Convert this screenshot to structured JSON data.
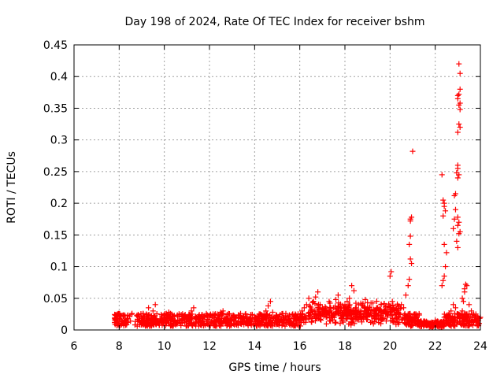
{
  "chart_data": {
    "type": "scatter",
    "title": "Day 198 of 2024, Rate Of TEC Index for receiver bshm",
    "xlabel": "GPS time / hours",
    "ylabel": "ROTI / TECUs",
    "xlim": [
      6,
      24
    ],
    "ylim": [
      0,
      0.45
    ],
    "xticks": [
      6,
      8,
      10,
      12,
      14,
      16,
      18,
      20,
      22,
      24
    ],
    "yticks": [
      0,
      0.05,
      0.1,
      0.15,
      0.2,
      0.25,
      0.3,
      0.35,
      0.4,
      0.45
    ],
    "ytick_labels": [
      "0",
      "0.05",
      "0.1",
      "0.15",
      "0.2",
      "0.25",
      "0.3",
      "0.35",
      "0.4",
      "0.45"
    ],
    "grid": true,
    "marker": "+",
    "color": "#ff0000",
    "series": [
      {
        "x": [
          7.8,
          7.9,
          8.0,
          8.1,
          8.2,
          8.3,
          8.5,
          8.7,
          8.9,
          9.0,
          9.1,
          9.2,
          9.3,
          9.4,
          9.5,
          9.6,
          9.7,
          9.9,
          10.0,
          10.2,
          10.3,
          10.4,
          10.6,
          10.8,
          11.0,
          11.1,
          11.2,
          11.3,
          11.5,
          11.7,
          11.9,
          12.0,
          12.2,
          12.4,
          12.5,
          12.6,
          12.8,
          13.0,
          13.2,
          13.4,
          13.5,
          13.6,
          13.8,
          14.0,
          14.2,
          14.3,
          14.4,
          14.5,
          14.6,
          14.7,
          14.8,
          15.0,
          15.2,
          15.4,
          15.6,
          15.8,
          16.0,
          16.1,
          16.2,
          16.3,
          16.4,
          16.5,
          16.6,
          16.7,
          16.8,
          16.9,
          17.0,
          17.1,
          17.2,
          17.3,
          17.5,
          17.6,
          17.7,
          17.8,
          17.9,
          18.0,
          18.1,
          18.2,
          18.3,
          18.4,
          18.5,
          18.6,
          18.7,
          18.8,
          18.9,
          19.0,
          19.2,
          19.4,
          19.6,
          19.8,
          20.0,
          20.1,
          20.2,
          20.3,
          20.5,
          20.6,
          20.7,
          20.8,
          20.9,
          21.0,
          21.2,
          21.4,
          21.6,
          21.8,
          22.0,
          22.2,
          22.3,
          22.4,
          22.5,
          22.6,
          22.7,
          22.8,
          22.9,
          23.0,
          23.1,
          23.2,
          23.3,
          23.4,
          23.5,
          23.6,
          23.8,
          24.0,
          8.0,
          8.4,
          8.8,
          9.2,
          9.5,
          9.8,
          10.1,
          10.5,
          10.9,
          11.3,
          11.6,
          12.1,
          12.7,
          13.1,
          13.7,
          14.1,
          14.9,
          15.5,
          16.0,
          16.5,
          16.9,
          17.4,
          17.9,
          18.3,
          18.8,
          19.3,
          19.7,
          20.1,
          20.4,
          20.9,
          21.3,
          21.7,
          22.1,
          22.5,
          22.8,
          23.1,
          23.5,
          23.9,
          20.0,
          20.05,
          20.7,
          20.8,
          20.85,
          20.9,
          20.9,
          20.95,
          20.9,
          20.85,
          20.9,
          20.95,
          21.0,
          22.3,
          22.35,
          22.4,
          22.4,
          22.45,
          22.35,
          22.4,
          22.5,
          22.45,
          22.4,
          22.35,
          22.3,
          22.8,
          22.85,
          22.9,
          22.95,
          23.0,
          23.0,
          23.05,
          23.0,
          22.95,
          22.9,
          22.85,
          23.0,
          23.05,
          23.0,
          23.1,
          23.05,
          23.0,
          23.1,
          23.05,
          23.0,
          23.05,
          23.1,
          23.0,
          23.05,
          23.1,
          23.0,
          23.1,
          23.05,
          23.1,
          23.3,
          23.35,
          23.2,
          23.25
        ],
        "y": [
          0.012,
          0.018,
          0.025,
          0.015,
          0.022,
          0.01,
          0.014,
          0.008,
          0.015,
          0.02,
          0.012,
          0.025,
          0.035,
          0.018,
          0.03,
          0.04,
          0.012,
          0.015,
          0.02,
          0.028,
          0.018,
          0.01,
          0.015,
          0.012,
          0.02,
          0.015,
          0.03,
          0.035,
          0.012,
          0.018,
          0.01,
          0.022,
          0.015,
          0.018,
          0.028,
          0.03,
          0.012,
          0.015,
          0.01,
          0.018,
          0.022,
          0.01,
          0.015,
          0.02,
          0.025,
          0.015,
          0.018,
          0.03,
          0.038,
          0.045,
          0.028,
          0.02,
          0.015,
          0.01,
          0.018,
          0.025,
          0.02,
          0.03,
          0.035,
          0.04,
          0.05,
          0.032,
          0.045,
          0.052,
          0.06,
          0.04,
          0.035,
          0.03,
          0.028,
          0.045,
          0.035,
          0.048,
          0.055,
          0.03,
          0.025,
          0.04,
          0.045,
          0.05,
          0.07,
          0.062,
          0.035,
          0.04,
          0.03,
          0.042,
          0.048,
          0.035,
          0.03,
          0.025,
          0.04,
          0.03,
          0.035,
          0.045,
          0.025,
          0.03,
          0.04,
          0.035,
          0.02,
          0.025,
          0.015,
          0.02,
          0.015,
          0.01,
          0.012,
          0.008,
          0.015,
          0.01,
          0.012,
          0.02,
          0.015,
          0.022,
          0.03,
          0.04,
          0.035,
          0.025,
          0.02,
          0.03,
          0.06,
          0.07,
          0.04,
          0.03,
          0.025,
          0.02,
          0.008,
          0.012,
          0.006,
          0.01,
          0.008,
          0.014,
          0.01,
          0.008,
          0.012,
          0.01,
          0.008,
          0.012,
          0.01,
          0.008,
          0.012,
          0.01,
          0.02,
          0.015,
          0.018,
          0.02,
          0.025,
          0.02,
          0.022,
          0.018,
          0.02,
          0.022,
          0.018,
          0.015,
          0.012,
          0.02,
          0.012,
          0.008,
          0.006,
          0.01,
          0.015,
          0.018,
          0.012,
          0.015,
          0.085,
          0.092,
          0.055,
          0.07,
          0.08,
          0.175,
          0.172,
          0.178,
          0.148,
          0.135,
          0.112,
          0.105,
          0.282,
          0.245,
          0.205,
          0.2,
          0.195,
          0.188,
          0.18,
          0.135,
          0.122,
          0.1,
          0.085,
          0.078,
          0.07,
          0.16,
          0.175,
          0.19,
          0.14,
          0.13,
          0.24,
          0.245,
          0.255,
          0.248,
          0.215,
          0.212,
          0.178,
          0.17,
          0.165,
          0.155,
          0.152,
          0.26,
          0.32,
          0.325,
          0.312,
          0.355,
          0.348,
          0.37,
          0.372,
          0.38,
          0.365,
          0.405,
          0.42,
          0.358,
          0.065,
          0.072,
          0.05,
          0.045
        ]
      }
    ]
  }
}
